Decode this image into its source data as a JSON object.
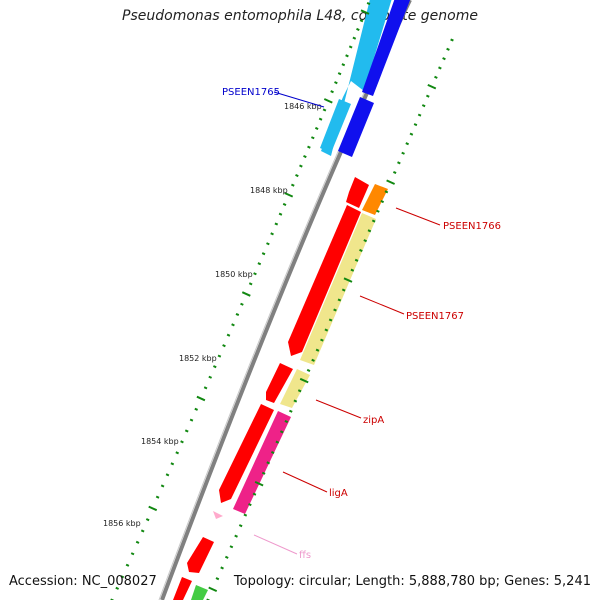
{
  "title": "Pseudomonas entomophila L48, complete genome",
  "footer": {
    "accession": "Accession: NC_008027",
    "summary": "Topology: circular; Length: 5,888,780 bp; Genes: 5,241"
  },
  "ticks": [
    "1846 kbp",
    "1848 kbp",
    "1850 kbp",
    "1852 kbp",
    "1854 kbp",
    "1856 kbp"
  ],
  "gene_labels": [
    {
      "text": "PSEEN1765",
      "color": "#0000cc"
    },
    {
      "text": "PSEEN1766",
      "color": "#cc0000"
    },
    {
      "text": "PSEEN1767",
      "color": "#cc0000"
    },
    {
      "text": "zipA",
      "color": "#cc0000"
    },
    {
      "text": "ligA",
      "color": "#cc0000"
    },
    {
      "text": "ffs",
      "color": "#ee99cc"
    }
  ],
  "colors": {
    "backbone": "#888888",
    "tick": "#118811",
    "red_gene": "#ff0000",
    "blue_gene": "#1010ee",
    "cyan_gene": "#22bbee",
    "orange_gene": "#ff8800",
    "yellow_gene": "#f0e68c",
    "magenta_gene": "#ee2288",
    "pink_gene": "#ffaacc",
    "green_gene": "#44cc44"
  }
}
